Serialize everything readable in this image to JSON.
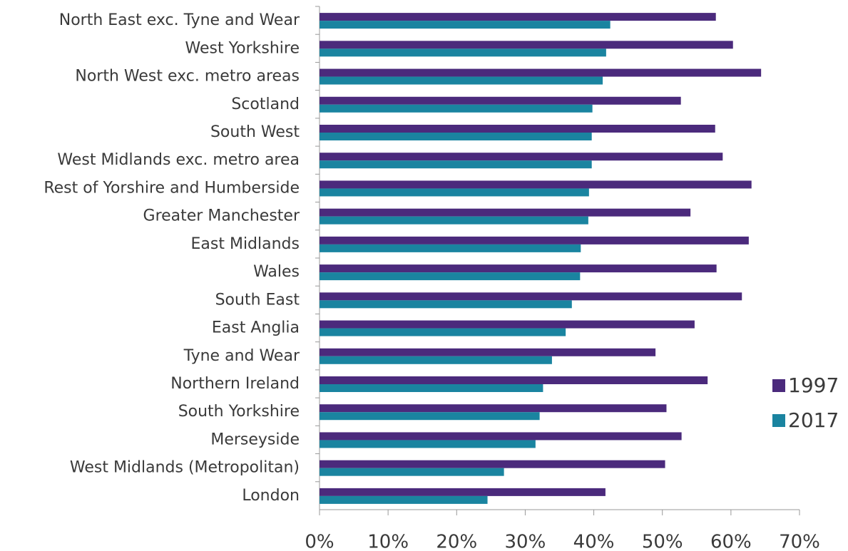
{
  "chart_data": {
    "type": "bar",
    "orientation": "horizontal",
    "categories": [
      "North East exc. Tyne and Wear",
      "West Yorkshire",
      "North West exc. metro areas",
      "Scotland",
      "South West",
      "West Midlands exc. metro area",
      "Rest of Yorshire and Humberside",
      "Greater Manchester",
      "East Midlands",
      "Wales",
      "South East",
      "East Anglia",
      "Tyne and Wear",
      "Northern Ireland",
      "South Yorkshire",
      "Merseyside",
      "West Midlands (Metropolitan)",
      "London"
    ],
    "series": [
      {
        "name": "1997",
        "color": "#4b2a7c",
        "values": [
          57.8,
          60.3,
          64.4,
          52.7,
          57.7,
          58.8,
          63.0,
          54.1,
          62.6,
          57.9,
          61.6,
          54.7,
          49.0,
          56.6,
          50.6,
          52.8,
          50.4,
          41.7
        ]
      },
      {
        "name": "2017",
        "color": "#1a84a0",
        "values": [
          42.4,
          41.8,
          41.3,
          39.8,
          39.7,
          39.7,
          39.3,
          39.2,
          38.1,
          38.0,
          36.8,
          35.9,
          33.9,
          32.6,
          32.1,
          31.5,
          26.9,
          24.5
        ]
      }
    ],
    "xlim": [
      0,
      70
    ],
    "xticks": [
      {
        "value": 0,
        "label": "0%"
      },
      {
        "value": 10,
        "label": "10%"
      },
      {
        "value": 20,
        "label": "20%"
      },
      {
        "value": 30,
        "label": "30%"
      },
      {
        "value": 40,
        "label": "40%"
      },
      {
        "value": 50,
        "label": "50%"
      },
      {
        "value": 60,
        "label": "60%"
      },
      {
        "value": 70,
        "label": "70%"
      }
    ],
    "legend": "right"
  }
}
